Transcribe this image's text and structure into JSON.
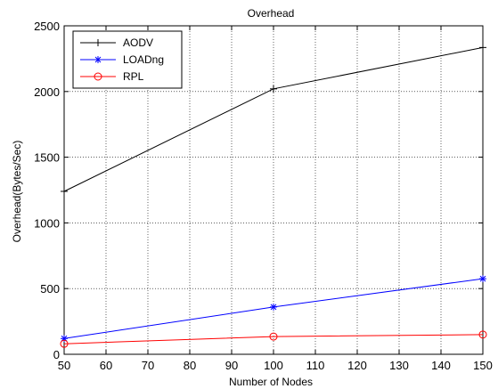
{
  "chart_data": {
    "type": "line",
    "title": "Overhead",
    "xlabel": "Number of Nodes",
    "ylabel": "Overhead(Bytes/Sec)",
    "x": [
      50,
      100,
      150
    ],
    "xlim": [
      50,
      150
    ],
    "ylim": [
      0,
      2500
    ],
    "xticks": [
      "50",
      "60",
      "70",
      "80",
      "90",
      "100",
      "110",
      "120",
      "130",
      "140",
      "150"
    ],
    "yticks": [
      "0",
      "500",
      "1000",
      "1500",
      "2000",
      "2500"
    ],
    "grid": true,
    "legend_position": "top-left",
    "series": [
      {
        "name": "AODV",
        "values": [
          1240,
          2020,
          2335
        ],
        "color": "#000000",
        "marker": "plus"
      },
      {
        "name": "LOADng",
        "values": [
          120,
          360,
          575
        ],
        "color": "#0000ff",
        "marker": "star"
      },
      {
        "name": "RPL",
        "values": [
          80,
          135,
          150
        ],
        "color": "#ff0000",
        "marker": "circle"
      }
    ]
  }
}
